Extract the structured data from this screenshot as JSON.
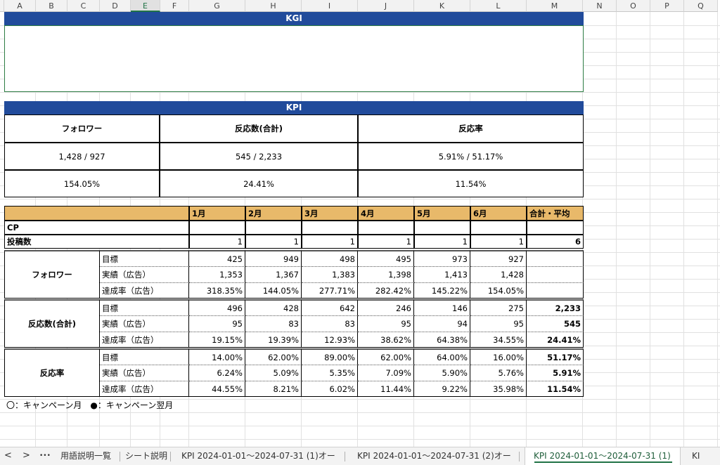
{
  "sheet": {
    "columns": [
      "A",
      "B",
      "C",
      "D",
      "E",
      "F",
      "G",
      "H",
      "I",
      "J",
      "K",
      "L",
      "M",
      "N",
      "O",
      "P",
      "Q"
    ],
    "kgi_title": "KGI",
    "kpi_title": "KPI",
    "kpi_headers": [
      "フォロワー",
      "反応数(合計)",
      "反応率"
    ],
    "kpi_row1": [
      "1,428 / 927",
      "545 / 2,233",
      "5.91% / 51.17%"
    ],
    "kpi_row2": [
      "154.05%",
      "24.41%",
      "11.54%"
    ],
    "month_headers": [
      "1月",
      "2月",
      "3月",
      "4月",
      "5月",
      "6月",
      "合計・平均"
    ],
    "cp_label": "CP",
    "posts_label": "投稿数",
    "posts_values": [
      "1",
      "1",
      "1",
      "1",
      "1",
      "1",
      "6"
    ],
    "groups": [
      {
        "label": "フォロワー",
        "rows": [
          {
            "label": "目標",
            "values": [
              "425",
              "949",
              "498",
              "495",
              "973",
              "927",
              ""
            ]
          },
          {
            "label": "実績（広告）",
            "values": [
              "1,353",
              "1,367",
              "1,383",
              "1,398",
              "1,413",
              "1,428",
              ""
            ]
          },
          {
            "label": "達成率（広告）",
            "values": [
              "318.35%",
              "144.05%",
              "277.71%",
              "282.42%",
              "145.22%",
              "154.05%",
              ""
            ]
          }
        ]
      },
      {
        "label": "反応数(合計)",
        "rows": [
          {
            "label": "目標",
            "values": [
              "496",
              "428",
              "642",
              "246",
              "146",
              "275",
              "2,233"
            ]
          },
          {
            "label": "実績（広告）",
            "values": [
              "95",
              "83",
              "83",
              "95",
              "94",
              "95",
              "545"
            ]
          },
          {
            "label": "達成率（広告）",
            "values": [
              "19.15%",
              "19.39%",
              "12.93%",
              "38.62%",
              "64.38%",
              "34.55%",
              "24.41%"
            ]
          }
        ]
      },
      {
        "label": "反応率",
        "rows": [
          {
            "label": "目標",
            "values": [
              "14.00%",
              "62.00%",
              "89.00%",
              "62.00%",
              "64.00%",
              "16.00%",
              "51.17%"
            ]
          },
          {
            "label": "実績（広告）",
            "values": [
              "6.24%",
              "5.09%",
              "5.35%",
              "7.09%",
              "5.90%",
              "5.76%",
              "5.91%"
            ]
          },
          {
            "label": "達成率（広告）",
            "values": [
              "44.55%",
              "8.21%",
              "6.02%",
              "11.44%",
              "9.22%",
              "35.98%",
              "11.54%"
            ]
          }
        ]
      }
    ],
    "legend": "〇：キャンペーン月　●：キャンペーン翌月"
  },
  "tabs": {
    "prev": "<",
    "next": ">",
    "more": "•••",
    "items": [
      "用語説明一覧",
      "シート説明",
      "KPI 2024-01-01～2024-07-31 (1)オー",
      "KPI 2024-01-01～2024-07-31 (2)オー",
      "KPI 2024-01-01～2024-07-31 (1)",
      "KI"
    ],
    "active_index": 4
  },
  "colors": {
    "band": "#214b9b",
    "header": "#e8b96a",
    "accent": "#217346"
  }
}
